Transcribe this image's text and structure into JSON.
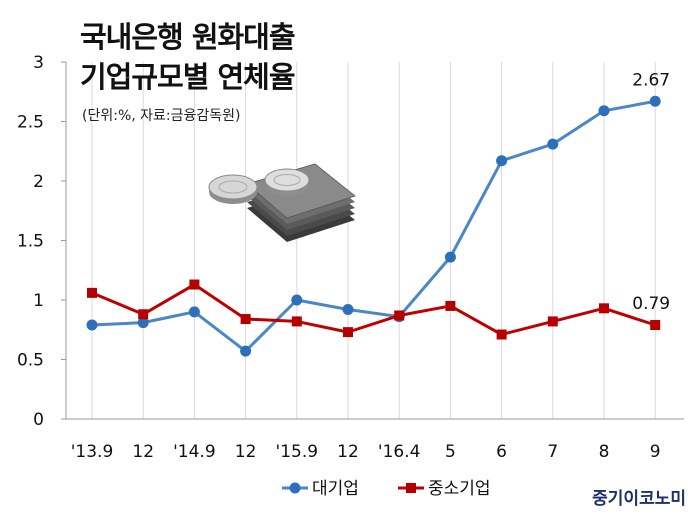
{
  "title_line1": "국내은행 원화대출",
  "title_line2": "기업규모별 연체율",
  "subtitle": "(단위:%, 자료:금융감독원)",
  "source_logo": "중기이코노미",
  "chart_data": {
    "type": "line",
    "categories": [
      "'13.9",
      "12",
      "'14.9",
      "12",
      "'15.9",
      "12",
      "'16.4",
      "5",
      "6",
      "7",
      "8",
      "9"
    ],
    "series": [
      {
        "name": "대기업",
        "color": "#4a86c8",
        "marker": "circle",
        "values": [
          0.79,
          0.81,
          0.9,
          0.57,
          1.0,
          0.92,
          0.86,
          1.36,
          2.17,
          2.31,
          2.59,
          2.67
        ]
      },
      {
        "name": "중소기업",
        "color": "#c00000",
        "marker": "square",
        "values": [
          1.06,
          0.88,
          1.13,
          0.84,
          0.82,
          0.73,
          0.87,
          0.95,
          0.71,
          0.82,
          0.93,
          0.79
        ]
      }
    ],
    "y_ticks": [
      "0",
      "0.5",
      "1",
      "1.5",
      "2",
      "2.5",
      "3"
    ],
    "ylim": [
      0,
      3
    ],
    "grid": "vertical",
    "annotations": [
      {
        "series": 0,
        "index": 11,
        "text": "2.67"
      },
      {
        "series": 1,
        "index": 11,
        "text": "0.79"
      }
    ],
    "legend_position": "bottom"
  }
}
